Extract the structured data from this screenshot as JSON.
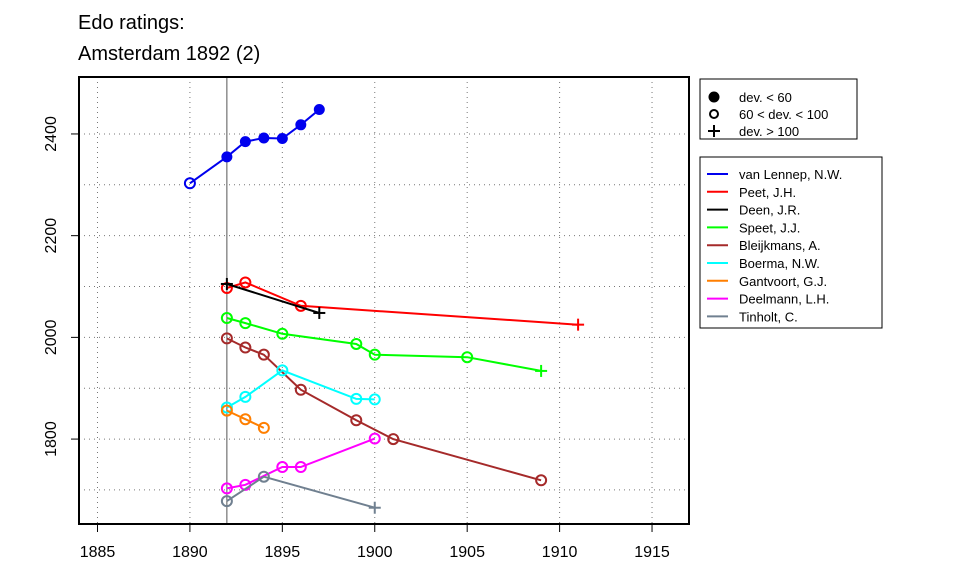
{
  "chart_data": {
    "type": "line",
    "title_line1": "Edo ratings:",
    "title_line2": "Amsterdam 1892 (2)",
    "xlim": [
      1884,
      1917
    ],
    "ylim": [
      1633,
      2512
    ],
    "x_ticks": [
      1885,
      1890,
      1895,
      1900,
      1905,
      1910,
      1915
    ],
    "y_ticks": [
      1800,
      2000,
      2200,
      2400
    ],
    "x_grid": [
      1885,
      1890,
      1895,
      1900,
      1905,
      1910,
      1915
    ],
    "y_grid": [
      1700,
      1800,
      1900,
      2000,
      2100,
      2200,
      2300,
      2400
    ],
    "grid": true,
    "event_year": 1892,
    "marker_legend": [
      {
        "symbol": "filled-circle",
        "label": "dev. < 60"
      },
      {
        "symbol": "open-circle",
        "label": "60 < dev. < 100"
      },
      {
        "symbol": "plus",
        "label": "dev. > 100"
      }
    ],
    "series": [
      {
        "name": "van Lennep, N.W.",
        "color": "#0000ee",
        "points": [
          {
            "x": 1890,
            "y": 2303,
            "m": "open"
          },
          {
            "x": 1892,
            "y": 2355,
            "m": "filled"
          },
          {
            "x": 1893,
            "y": 2385,
            "m": "filled"
          },
          {
            "x": 1894,
            "y": 2392,
            "m": "filled"
          },
          {
            "x": 1895,
            "y": 2391,
            "m": "filled"
          },
          {
            "x": 1896,
            "y": 2418,
            "m": "filled"
          },
          {
            "x": 1897,
            "y": 2448,
            "m": "filled"
          }
        ]
      },
      {
        "name": "Peet, J.H.",
        "color": "#ff0000",
        "points": [
          {
            "x": 1892,
            "y": 2097,
            "m": "open"
          },
          {
            "x": 1893,
            "y": 2108,
            "m": "open"
          },
          {
            "x": 1896,
            "y": 2062,
            "m": "open"
          },
          {
            "x": 1911,
            "y": 2025,
            "m": "plus"
          }
        ]
      },
      {
        "name": "Deen, J.R.",
        "color": "#000000",
        "points": [
          {
            "x": 1892,
            "y": 2105,
            "m": "plus"
          },
          {
            "x": 1897,
            "y": 2048,
            "m": "plus"
          }
        ]
      },
      {
        "name": "Speet, J.J.",
        "color": "#00ff00",
        "points": [
          {
            "x": 1892,
            "y": 2038,
            "m": "open"
          },
          {
            "x": 1893,
            "y": 2028,
            "m": "open"
          },
          {
            "x": 1895,
            "y": 2007,
            "m": "open"
          },
          {
            "x": 1899,
            "y": 1987,
            "m": "open"
          },
          {
            "x": 1900,
            "y": 1966,
            "m": "open"
          },
          {
            "x": 1905,
            "y": 1961,
            "m": "open"
          },
          {
            "x": 1909,
            "y": 1934,
            "m": "plus"
          }
        ]
      },
      {
        "name": "Bleijkmans, A.",
        "color": "#a52a2a",
        "points": [
          {
            "x": 1892,
            "y": 1998,
            "m": "open"
          },
          {
            "x": 1893,
            "y": 1980,
            "m": "open"
          },
          {
            "x": 1894,
            "y": 1966,
            "m": "open"
          },
          {
            "x": 1896,
            "y": 1897,
            "m": "open"
          },
          {
            "x": 1899,
            "y": 1837,
            "m": "open"
          },
          {
            "x": 1901,
            "y": 1800,
            "m": "open"
          },
          {
            "x": 1909,
            "y": 1719,
            "m": "open"
          }
        ]
      },
      {
        "name": "Boerma, N.W.",
        "color": "#00ffff",
        "points": [
          {
            "x": 1892,
            "y": 1862,
            "m": "open"
          },
          {
            "x": 1893,
            "y": 1883,
            "m": "open"
          },
          {
            "x": 1895,
            "y": 1935,
            "m": "open"
          },
          {
            "x": 1899,
            "y": 1879,
            "m": "open"
          },
          {
            "x": 1900,
            "y": 1878,
            "m": "open"
          }
        ]
      },
      {
        "name": "Gantvoort, G.J.",
        "color": "#ff7f00",
        "points": [
          {
            "x": 1892,
            "y": 1856,
            "m": "open"
          },
          {
            "x": 1893,
            "y": 1839,
            "m": "open"
          },
          {
            "x": 1894,
            "y": 1822,
            "m": "open"
          }
        ]
      },
      {
        "name": "Deelmann, L.H.",
        "color": "#ff00ff",
        "points": [
          {
            "x": 1892,
            "y": 1703,
            "m": "open"
          },
          {
            "x": 1893,
            "y": 1710,
            "m": "open"
          },
          {
            "x": 1895,
            "y": 1745,
            "m": "open"
          },
          {
            "x": 1896,
            "y": 1745,
            "m": "open"
          },
          {
            "x": 1900,
            "y": 1801,
            "m": "open"
          }
        ]
      },
      {
        "name": "Tinholt, C.",
        "color": "#708090",
        "points": [
          {
            "x": 1892,
            "y": 1678,
            "m": "open"
          },
          {
            "x": 1894,
            "y": 1726,
            "m": "open"
          },
          {
            "x": 1900,
            "y": 1665,
            "m": "plus"
          }
        ]
      }
    ]
  }
}
